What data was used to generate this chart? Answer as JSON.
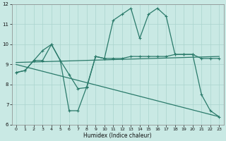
{
  "xlabel": "Humidex (Indice chaleur)",
  "background_color": "#c9e9e4",
  "grid_color": "#aad4ce",
  "line_color": "#2a7a6a",
  "xlim": [
    -0.5,
    23.5
  ],
  "ylim": [
    6,
    12
  ],
  "yticks": [
    6,
    7,
    8,
    9,
    10,
    11,
    12
  ],
  "xticks": [
    0,
    1,
    2,
    3,
    4,
    5,
    6,
    7,
    8,
    9,
    10,
    11,
    12,
    13,
    14,
    15,
    16,
    17,
    18,
    19,
    20,
    21,
    22,
    23
  ],
  "series1_x": [
    0,
    1,
    2,
    3,
    4,
    5,
    6,
    7,
    8,
    9,
    10,
    11,
    12,
    13,
    14,
    15,
    16,
    17,
    18,
    19,
    20,
    21,
    22,
    23
  ],
  "series1_y": [
    8.6,
    8.7,
    9.2,
    9.7,
    10.0,
    9.2,
    8.5,
    7.8,
    7.85,
    9.4,
    9.3,
    9.3,
    9.3,
    9.4,
    9.4,
    9.4,
    9.4,
    9.4,
    9.5,
    9.5,
    9.5,
    9.3,
    9.3,
    9.3
  ],
  "series2_x": [
    0,
    1,
    2,
    3,
    4,
    5,
    6,
    7,
    8,
    9,
    10,
    11,
    12,
    13,
    14,
    15,
    16,
    17,
    18,
    19,
    20,
    21,
    22,
    23
  ],
  "series2_y": [
    8.6,
    8.7,
    9.2,
    9.2,
    10.0,
    9.2,
    6.7,
    6.7,
    7.9,
    9.4,
    9.3,
    11.2,
    11.5,
    11.8,
    10.3,
    11.5,
    11.8,
    11.4,
    9.5,
    9.5,
    9.5,
    7.5,
    6.7,
    6.4
  ],
  "series3_x": [
    0,
    23
  ],
  "series3_y": [
    9.1,
    9.4
  ],
  "series4_x": [
    0,
    23
  ],
  "series4_y": [
    9.0,
    6.4
  ]
}
